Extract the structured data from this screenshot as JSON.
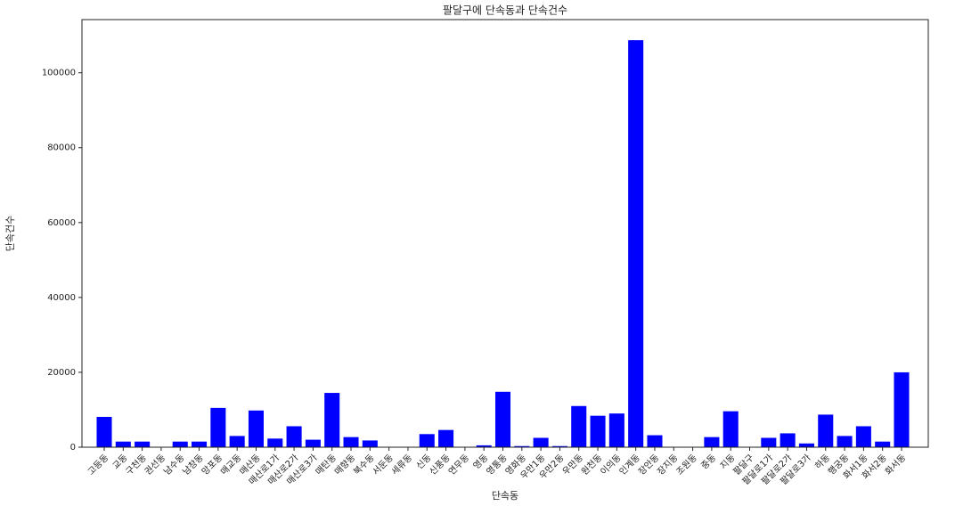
{
  "chart_data": {
    "type": "bar",
    "title": "팔달구에 단속동과 단속건수",
    "x_label": "단속동",
    "y_label": "단속건수",
    "categories": [
      "고등동",
      "교동",
      "구천동",
      "권선동",
      "남수동",
      "남창동",
      "망포동",
      "매교동",
      "매산동",
      "매산로1가",
      "매산로2가",
      "매산로3가",
      "매탄동",
      "매향동",
      "북수동",
      "서둔동",
      "세류동",
      "신동",
      "신풍동",
      "연무동",
      "영동",
      "영통동",
      "영화동",
      "우만1동",
      "우만2동",
      "우만동",
      "원천동",
      "이의동",
      "인계동",
      "장안동",
      "장지동",
      "조원동",
      "중동",
      "지동",
      "팔달구",
      "팔달로1가",
      "팔달로2가",
      "팔달로3가",
      "하동",
      "행궁동",
      "화서1동",
      "화서2동",
      "화서동"
    ],
    "values": [
      8100,
      1500,
      1500,
      0,
      1500,
      1500,
      10500,
      3000,
      9800,
      2300,
      5600,
      2000,
      14500,
      2700,
      1800,
      0,
      0,
      3500,
      4600,
      0,
      500,
      14800,
      300,
      2500,
      300,
      11000,
      8400,
      9000,
      108700,
      3200,
      0,
      0,
      2700,
      9600,
      0,
      2500,
      3700,
      1000,
      8700,
      3000,
      5600,
      1500,
      20000
    ],
    "color": "#0000ff",
    "ylim": [
      0,
      114200
    ],
    "yticks": [
      0,
      20000,
      40000,
      60000,
      80000,
      100000
    ]
  }
}
